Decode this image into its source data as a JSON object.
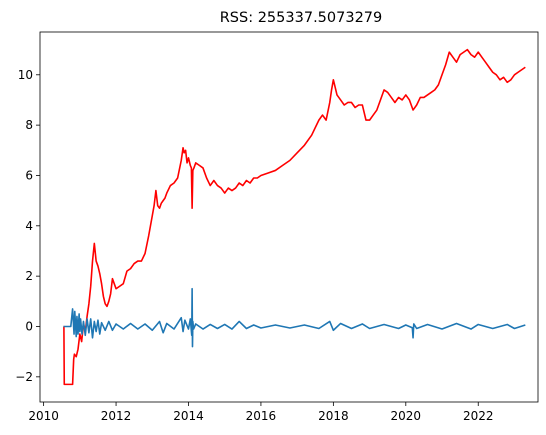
{
  "chart_data": {
    "type": "line",
    "title": "RSS: 255337.5073279",
    "xlabel": "",
    "ylabel": "",
    "xlim": [
      2009.9,
      2023.65
    ],
    "ylim": [
      -3.0,
      11.7
    ],
    "grid": false,
    "x_ticks": [
      2010,
      2012,
      2014,
      2016,
      2018,
      2020,
      2022
    ],
    "y_ticks": [
      -2,
      0,
      2,
      4,
      6,
      8,
      10
    ],
    "colors": {
      "red_series": "#ff0000",
      "blue_series": "#1f77b4"
    },
    "series": [
      {
        "color": "red",
        "x": [
          2010.55,
          2010.56,
          2010.57,
          2010.6,
          2010.7,
          2010.8,
          2010.83,
          2010.85,
          2010.9,
          2010.95,
          2011.0,
          2011.05,
          2011.1,
          2011.15,
          2011.2,
          2011.25,
          2011.3,
          2011.35,
          2011.4,
          2011.45,
          2011.5,
          2011.55,
          2011.6,
          2011.65,
          2011.7,
          2011.75,
          2011.8,
          2011.85,
          2011.9,
          2011.95,
          2012.0,
          2012.1,
          2012.2,
          2012.3,
          2012.4,
          2012.5,
          2012.6,
          2012.7,
          2012.8,
          2012.9,
          2013.0,
          2013.05,
          2013.1,
          2013.15,
          2013.2,
          2013.25,
          2013.3,
          2013.35,
          2013.4,
          2013.5,
          2013.6,
          2013.7,
          2013.8,
          2013.85,
          2013.88,
          2013.92,
          2013.96,
          2014.0,
          2014.05,
          2014.08,
          2014.1,
          2014.12,
          2014.15,
          2014.2,
          2014.3,
          2014.4,
          2014.5,
          2014.6,
          2014.7,
          2014.8,
          2014.9,
          2015.0,
          2015.1,
          2015.2,
          2015.3,
          2015.4,
          2015.5,
          2015.6,
          2015.7,
          2015.8,
          2015.9,
          2016.0,
          2016.2,
          2016.4,
          2016.6,
          2016.8,
          2017.0,
          2017.2,
          2017.4,
          2017.6,
          2017.7,
          2017.8,
          2017.9,
          2017.95,
          2018.0,
          2018.05,
          2018.1,
          2018.2,
          2018.3,
          2018.4,
          2018.5,
          2018.6,
          2018.7,
          2018.8,
          2018.9,
          2019.0,
          2019.1,
          2019.2,
          2019.3,
          2019.4,
          2019.5,
          2019.6,
          2019.7,
          2019.8,
          2019.9,
          2020.0,
          2020.1,
          2020.2,
          2020.3,
          2020.4,
          2020.5,
          2020.6,
          2020.7,
          2020.8,
          2020.9,
          2021.0,
          2021.1,
          2021.2,
          2021.3,
          2021.4,
          2021.5,
          2021.6,
          2021.7,
          2021.8,
          2021.9,
          2022.0,
          2022.1,
          2022.2,
          2022.3,
          2022.4,
          2022.5,
          2022.6,
          2022.7,
          2022.8,
          2022.9,
          2023.0,
          2023.1,
          2023.2,
          2023.3
        ],
        "y": [
          0.0,
          0.0,
          -2.3,
          -2.3,
          -2.3,
          -2.3,
          -1.3,
          -1.1,
          -1.2,
          -0.9,
          -0.3,
          -0.6,
          0.1,
          -0.2,
          0.4,
          0.9,
          1.6,
          2.6,
          3.3,
          2.6,
          2.4,
          2.1,
          1.7,
          1.2,
          0.9,
          0.8,
          1.0,
          1.3,
          1.9,
          1.7,
          1.5,
          1.6,
          1.7,
          2.2,
          2.3,
          2.5,
          2.6,
          2.6,
          2.9,
          3.6,
          4.4,
          4.8,
          5.4,
          4.8,
          4.7,
          4.9,
          5.0,
          5.1,
          5.3,
          5.6,
          5.7,
          5.9,
          6.6,
          7.1,
          6.9,
          7.0,
          6.5,
          6.7,
          6.4,
          6.3,
          4.7,
          6.2,
          6.3,
          6.5,
          6.4,
          6.3,
          5.9,
          5.6,
          5.8,
          5.6,
          5.5,
          5.3,
          5.5,
          5.4,
          5.5,
          5.7,
          5.6,
          5.8,
          5.7,
          5.9,
          5.9,
          6.0,
          6.1,
          6.2,
          6.4,
          6.6,
          6.9,
          7.2,
          7.6,
          8.2,
          8.4,
          8.2,
          8.9,
          9.4,
          9.8,
          9.5,
          9.2,
          9.0,
          8.8,
          8.9,
          8.9,
          8.7,
          8.8,
          8.8,
          8.2,
          8.2,
          8.4,
          8.6,
          9.0,
          9.4,
          9.3,
          9.1,
          8.9,
          9.1,
          9.0,
          9.2,
          9.0,
          8.6,
          8.8,
          9.1,
          9.1,
          9.2,
          9.3,
          9.4,
          9.6,
          10.0,
          10.4,
          10.9,
          10.7,
          10.5,
          10.8,
          10.9,
          11.0,
          10.8,
          10.7,
          10.9,
          10.7,
          10.5,
          10.3,
          10.1,
          10.0,
          9.8,
          9.9,
          9.7,
          9.8,
          10.0,
          10.1,
          10.2,
          10.3
        ]
      },
      {
        "color": "blue",
        "x": [
          2010.55,
          2010.75,
          2010.8,
          2010.84,
          2010.86,
          2010.9,
          2010.92,
          2010.95,
          2010.98,
          2011.0,
          2011.02,
          2011.06,
          2011.1,
          2011.15,
          2011.2,
          2011.25,
          2011.3,
          2011.35,
          2011.4,
          2011.45,
          2011.5,
          2011.55,
          2011.6,
          2011.7,
          2011.8,
          2011.9,
          2012.0,
          2012.2,
          2012.4,
          2012.6,
          2012.8,
          2013.0,
          2013.2,
          2013.3,
          2013.4,
          2013.6,
          2013.8,
          2013.85,
          2013.9,
          2014.0,
          2014.05,
          2014.09,
          2014.1,
          2014.11,
          2014.12,
          2014.14,
          2014.2,
          2014.4,
          2014.6,
          2014.8,
          2015.0,
          2015.2,
          2015.4,
          2015.6,
          2015.8,
          2016.0,
          2016.4,
          2016.8,
          2017.2,
          2017.6,
          2017.9,
          2018.0,
          2018.2,
          2018.5,
          2018.8,
          2019.0,
          2019.4,
          2019.8,
          2020.0,
          2020.18,
          2020.2,
          2020.22,
          2020.3,
          2020.6,
          2021.0,
          2021.4,
          2021.8,
          2022.0,
          2022.4,
          2022.8,
          2023.0,
          2023.3
        ],
        "y": [
          0.0,
          0.0,
          0.7,
          -0.3,
          0.6,
          -0.4,
          0.4,
          -0.3,
          0.5,
          -0.2,
          0.3,
          -0.3,
          0.2,
          -0.35,
          0.3,
          -0.25,
          0.3,
          -0.45,
          0.2,
          -0.2,
          0.25,
          -0.3,
          0.15,
          -0.15,
          0.2,
          -0.15,
          0.1,
          -0.1,
          0.12,
          -0.1,
          0.1,
          -0.15,
          0.2,
          -0.25,
          0.12,
          -0.1,
          0.35,
          -0.2,
          0.25,
          -0.1,
          0.3,
          -0.35,
          1.5,
          -0.8,
          0.2,
          -0.1,
          0.1,
          -0.1,
          0.08,
          -0.08,
          0.08,
          -0.1,
          0.2,
          -0.08,
          0.06,
          -0.06,
          0.06,
          -0.06,
          0.06,
          -0.08,
          0.2,
          -0.15,
          0.12,
          -0.08,
          0.1,
          -0.08,
          0.08,
          -0.08,
          0.06,
          -0.05,
          -0.45,
          0.1,
          -0.08,
          0.08,
          -0.1,
          0.12,
          -0.1,
          0.08,
          -0.08,
          0.08,
          -0.08,
          0.06
        ]
      }
    ]
  }
}
